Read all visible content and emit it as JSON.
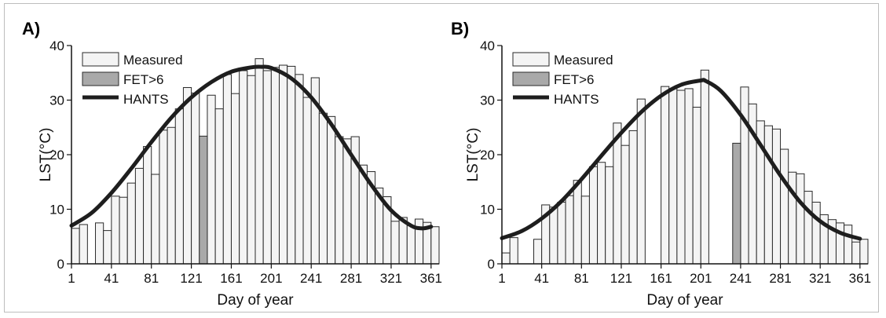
{
  "chart_data": [
    {
      "type": "bar",
      "panel_label": "A)",
      "xlabel": "Day of year",
      "ylabel": "LST(°C)",
      "xlim": [
        1,
        369
      ],
      "ylim": [
        0,
        40
      ],
      "x_ticks": [
        1,
        41,
        81,
        121,
        161,
        201,
        241,
        281,
        321,
        361
      ],
      "y_ticks": [
        0,
        10,
        20,
        30,
        40
      ],
      "bar_width_days": 8,
      "legend": [
        "Measured",
        "FET>6",
        "HANTS"
      ],
      "legend_position": "top-left",
      "series": [
        {
          "name": "Measured",
          "x": [
            1,
            9,
            17,
            25,
            33,
            41,
            49,
            57,
            65,
            73,
            81,
            89,
            97,
            105,
            113,
            121,
            137,
            145,
            153,
            161,
            169,
            177,
            185,
            193,
            201,
            209,
            217,
            225,
            233,
            241,
            249,
            257,
            265,
            273,
            281,
            289,
            297,
            305,
            313,
            321,
            329,
            337,
            345,
            353,
            361
          ],
          "values": [
            6.5,
            7.2,
            0,
            7.5,
            6.1,
            12.4,
            12.2,
            14.8,
            17.5,
            21.5,
            16.4,
            24.5,
            25.0,
            28.4,
            32.3,
            31.3,
            30.9,
            28.4,
            34.7,
            31.2,
            35.4,
            34.5,
            37.6,
            35.4,
            36.0,
            36.4,
            36.2,
            34.7,
            30.5,
            34.1,
            27.6,
            27.0,
            23.3,
            22.9,
            23.3,
            18.1,
            16.9,
            13.9,
            12.3,
            7.8,
            8.5,
            7.0,
            8.2,
            7.6,
            6.8
          ]
        },
        {
          "name": "FET>6",
          "x": [
            129
          ],
          "values": [
            23.4
          ]
        },
        {
          "name": "HANTS",
          "x": [
            1,
            21,
            41,
            61,
            81,
            101,
            121,
            141,
            161,
            181,
            191,
            201,
            221,
            241,
            261,
            281,
            301,
            321,
            341,
            352,
            361
          ],
          "values": [
            7.0,
            9.3,
            13.0,
            17.5,
            22.3,
            26.8,
            30.5,
            33.3,
            35.2,
            36.0,
            36.1,
            35.9,
            34.0,
            30.5,
            25.6,
            20.0,
            14.5,
            9.8,
            7.0,
            6.5,
            6.8
          ]
        }
      ]
    },
    {
      "type": "bar",
      "panel_label": "B)",
      "xlabel": "Day of year",
      "ylabel": "LST(°C)",
      "xlim": [
        1,
        369
      ],
      "ylim": [
        0,
        40
      ],
      "x_ticks": [
        1,
        41,
        81,
        121,
        161,
        201,
        241,
        281,
        321,
        361
      ],
      "y_ticks": [
        0,
        10,
        20,
        30,
        40
      ],
      "bar_width_days": 8,
      "legend": [
        "Measured",
        "FET>6",
        "HANTS"
      ],
      "legend_position": "top-left",
      "series": [
        {
          "name": "Measured",
          "x": [
            1,
            9,
            33,
            41,
            49,
            57,
            65,
            73,
            81,
            89,
            97,
            105,
            113,
            121,
            129,
            137,
            161,
            169,
            177,
            185,
            193,
            201,
            241,
            249,
            257,
            265,
            273,
            281,
            289,
            297,
            305,
            313,
            321,
            329,
            337,
            345,
            353,
            361
          ],
          "values": [
            2.0,
            4.8,
            4.5,
            10.8,
            10.4,
            11.3,
            12.5,
            15.3,
            12.4,
            17.8,
            18.6,
            17.8,
            25.8,
            21.7,
            24.4,
            30.2,
            32.5,
            32.1,
            31.8,
            32.1,
            28.7,
            35.5,
            32.4,
            29.3,
            26.2,
            25.3,
            24.7,
            21.0,
            16.8,
            16.5,
            13.3,
            11.3,
            9.0,
            8.1,
            7.5,
            7.1,
            4.0,
            4.5
          ]
        },
        {
          "name": "FET>6",
          "x": [
            233
          ],
          "values": [
            22.1
          ]
        },
        {
          "name": "HANTS",
          "x": [
            1,
            21,
            41,
            61,
            81,
            101,
            121,
            141,
            161,
            181,
            201,
            206,
            221,
            241,
            261,
            281,
            301,
            321,
            341,
            361
          ],
          "values": [
            4.7,
            6.0,
            8.3,
            11.5,
            15.5,
            19.8,
            24.0,
            27.8,
            30.8,
            32.8,
            33.6,
            33.5,
            31.7,
            27.3,
            21.8,
            16.2,
            11.3,
            7.8,
            5.7,
            4.6
          ]
        }
      ]
    }
  ]
}
